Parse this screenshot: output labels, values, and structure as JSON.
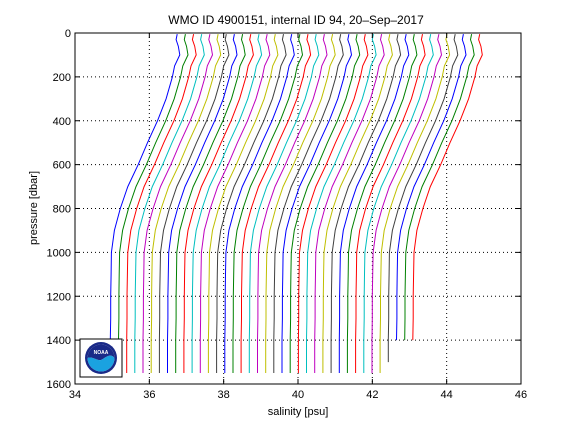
{
  "chart_data": {
    "type": "line",
    "title": "WMO ID 4900151, internal ID 94, 20–Sep–2017",
    "xlabel": "salinity [psu]",
    "ylabel": "pressure [dbar]",
    "xlim": [
      34,
      46
    ],
    "ylim": [
      1600,
      0
    ],
    "y_reversed": true,
    "grid": true,
    "x_ticks": [
      34,
      36,
      38,
      40,
      42,
      44,
      46
    ],
    "y_ticks": [
      0,
      200,
      400,
      600,
      800,
      1000,
      1200,
      1400,
      1600
    ],
    "x_tick_labels": [
      "34",
      "36",
      "38",
      "40",
      "42",
      "44",
      "46"
    ],
    "y_tick_labels": [
      "0",
      "200",
      "400",
      "600",
      "800",
      "1000",
      "1200",
      "1400",
      "1600"
    ],
    "offset_per_profile_psu": 0.22,
    "profile_colors": [
      "#0000ff",
      "#008000",
      "#ff0000",
      "#00bfbf",
      "#bf00bf",
      "#bfbf00",
      "#404040"
    ],
    "pressure": [
      5,
      30,
      60,
      100,
      150,
      200,
      300,
      400,
      500,
      600,
      700,
      800,
      900,
      1000,
      1100,
      1200,
      1300,
      1400,
      1500,
      1550
    ],
    "base_profile_salinity": [
      36.75,
      36.72,
      36.78,
      36.82,
      36.68,
      36.62,
      36.45,
      36.22,
      35.95,
      35.7,
      35.42,
      35.22,
      35.06,
      34.98,
      34.97,
      34.96,
      34.96,
      34.95,
      34.95,
      34.95
    ],
    "series": [
      {
        "offset": 0.0,
        "bottom_pressure": 1550
      },
      {
        "offset": 0.22,
        "bottom_pressure": 1550
      },
      {
        "offset": 0.44,
        "bottom_pressure": 1550
      },
      {
        "offset": 0.66,
        "bottom_pressure": 1550
      },
      {
        "offset": 0.88,
        "bottom_pressure": 1550
      },
      {
        "offset": 1.1,
        "bottom_pressure": 1550
      },
      {
        "offset": 1.32,
        "bottom_pressure": 1550
      },
      {
        "offset": 1.54,
        "bottom_pressure": 1550
      },
      {
        "offset": 1.76,
        "bottom_pressure": 1550
      },
      {
        "offset": 1.98,
        "bottom_pressure": 1550
      },
      {
        "offset": 2.2,
        "bottom_pressure": 1550
      },
      {
        "offset": 2.42,
        "bottom_pressure": 1550
      },
      {
        "offset": 2.64,
        "bottom_pressure": 1550
      },
      {
        "offset": 2.86,
        "bottom_pressure": 1550
      },
      {
        "offset": 3.08,
        "bottom_pressure": 1550
      },
      {
        "offset": 3.3,
        "bottom_pressure": 1550
      },
      {
        "offset": 3.52,
        "bottom_pressure": 1550
      },
      {
        "offset": 3.74,
        "bottom_pressure": 1550
      },
      {
        "offset": 3.96,
        "bottom_pressure": 1550
      },
      {
        "offset": 4.18,
        "bottom_pressure": 1550
      },
      {
        "offset": 4.4,
        "bottom_pressure": 1550
      },
      {
        "offset": 4.62,
        "bottom_pressure": 1550
      },
      {
        "offset": 4.84,
        "bottom_pressure": 1550
      },
      {
        "offset": 5.06,
        "bottom_pressure": 1550
      },
      {
        "offset": 5.28,
        "bottom_pressure": 1550
      },
      {
        "offset": 5.5,
        "bottom_pressure": 1550
      },
      {
        "offset": 5.72,
        "bottom_pressure": 1550
      },
      {
        "offset": 5.94,
        "bottom_pressure": 1550
      },
      {
        "offset": 6.16,
        "bottom_pressure": 1550
      },
      {
        "offset": 6.38,
        "bottom_pressure": 1550
      },
      {
        "offset": 6.6,
        "bottom_pressure": 1550
      },
      {
        "offset": 6.82,
        "bottom_pressure": 1550
      },
      {
        "offset": 7.04,
        "bottom_pressure": 1550
      },
      {
        "offset": 7.26,
        "bottom_pressure": 1550
      },
      {
        "offset": 7.48,
        "bottom_pressure": 1500
      },
      {
        "offset": 7.7,
        "bottom_pressure": 1480
      },
      {
        "offset": 7.92,
        "bottom_pressure": 1450
      },
      {
        "offset": 8.14,
        "bottom_pressure": 1420
      }
    ],
    "logo": {
      "text": "NOAA"
    }
  }
}
